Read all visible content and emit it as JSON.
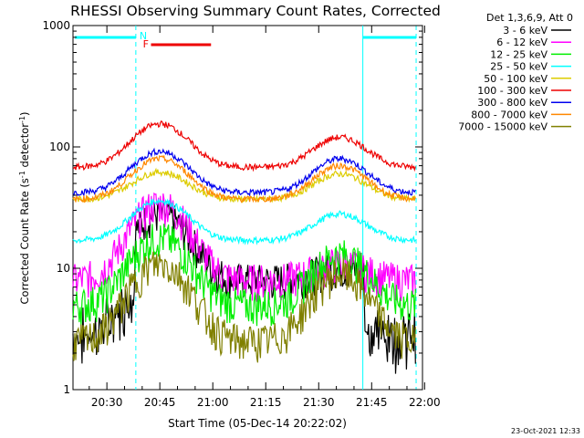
{
  "chart_data": {
    "type": "line",
    "title": "RHESSI Observing Summary Count Rates, Corrected",
    "xlabel": "Start Time (05-Dec-14 20:22:02)",
    "ylabel_main": "Corrected Count Rate (s",
    "ylabel_sup1": "-1",
    "ylabel_mid": " detector",
    "ylabel_sup2": "-1",
    "ylabel_end": ")",
    "y_scale": "log",
    "ylim": [
      1,
      1000
    ],
    "xlim_minutes": [
      20.4,
      95.4
    ],
    "x_ticks": [
      {
        "minute": 30,
        "label": "20:30"
      },
      {
        "minute": 45,
        "label": "20:45"
      },
      {
        "minute": 60,
        "label": "21:00"
      },
      {
        "minute": 75,
        "label": "21:15"
      },
      {
        "minute": 90,
        "label": "21:30"
      },
      {
        "minute": 105,
        "label": "21:45"
      },
      {
        "minute": 120,
        "label": "22:00"
      }
    ],
    "y_ticks": [
      {
        "value": 1,
        "label": "1"
      },
      {
        "value": 10,
        "label": "10"
      },
      {
        "value": 100,
        "label": "100"
      },
      {
        "value": 1000,
        "label": "1000"
      }
    ],
    "legend_header": "Det 1,3,6,9, Att 0",
    "legend_position": "top-right outside",
    "series": [
      {
        "name": "3 - 6 keV",
        "color": "#000000",
        "base": 8,
        "peak1": 28,
        "peak2": 10
      },
      {
        "name": "6 - 12 keV",
        "color": "#ff00ff",
        "base": 8,
        "peak1": 34,
        "peak2": 11
      },
      {
        "name": "12 - 25 keV",
        "color": "#00ee00",
        "base": 5,
        "peak1": 18,
        "peak2": 13
      },
      {
        "name": "25 - 50 keV",
        "color": "#00ffff",
        "base": 17,
        "peak1": 36,
        "peak2": 28
      },
      {
        "name": "50 - 100 keV",
        "color": "#ddcc00",
        "base": 37,
        "peak1": 62,
        "peak2": 60
      },
      {
        "name": "100 - 300 keV",
        "color": "#ee0000",
        "base": 68,
        "peak1": 155,
        "peak2": 120
      },
      {
        "name": "300 - 800 keV",
        "color": "#0000ee",
        "base": 42,
        "peak1": 92,
        "peak2": 80
      },
      {
        "name": "800 - 7000 keV",
        "color": "#ff8800",
        "base": 37,
        "peak1": 80,
        "peak2": 70
      },
      {
        "name": "7000 - 15000 keV",
        "color": "#808000",
        "base": 2.5,
        "peak1": 11,
        "peak2": 9
      }
    ],
    "annotations": [
      {
        "label": "N",
        "color": "#00ffff"
      },
      {
        "label": "F",
        "color": "#ee0000"
      }
    ],
    "night_periods_minutes": [
      [
        20.4,
        38.2
      ],
      [
        102.5,
        95.4
      ]
    ],
    "flare_flag_minutes": [
      42.5,
      59.5
    ]
  },
  "footer": {
    "date_stamp": "23-Oct-2021 12:33"
  }
}
